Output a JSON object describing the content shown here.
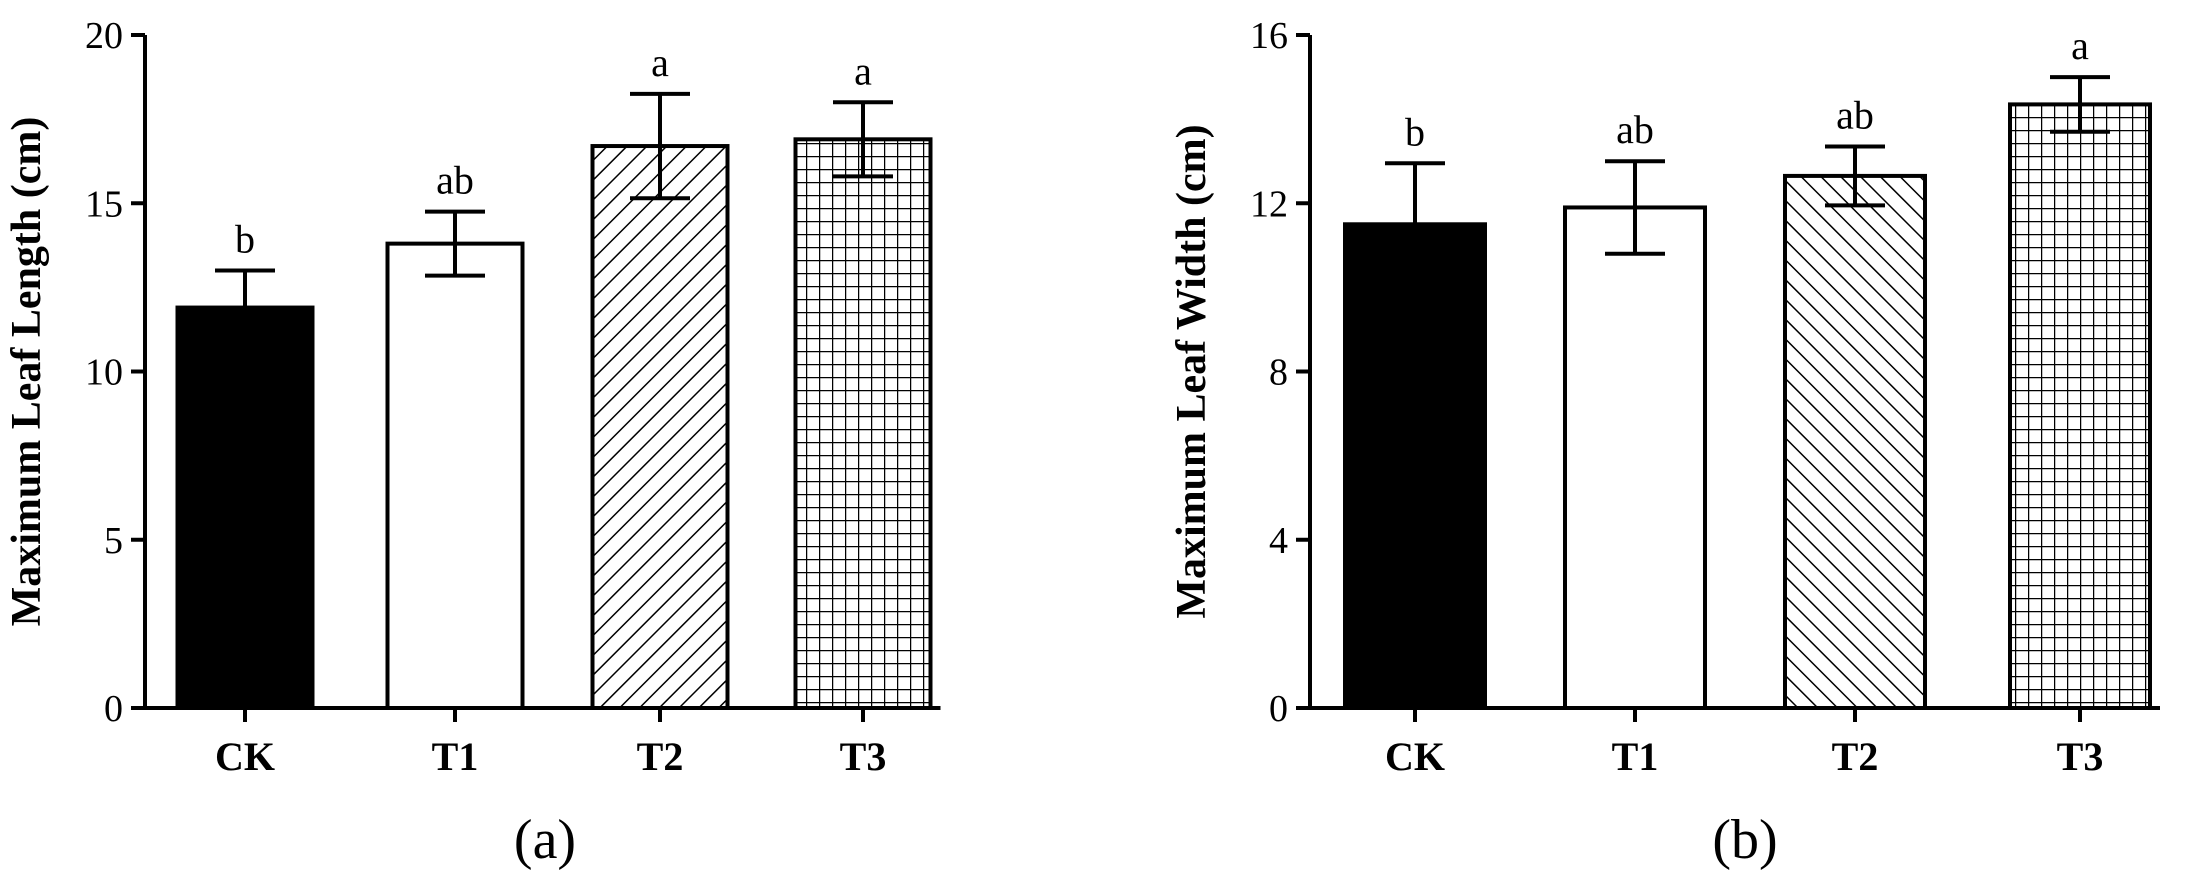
{
  "chart_data": [
    {
      "type": "bar",
      "panel_label": "(a)",
      "ylabel": "Maximum Leaf Length (cm)",
      "xlabel": "",
      "categories": [
        "CK",
        "T1",
        "T2",
        "T3"
      ],
      "values": [
        11.9,
        13.8,
        16.7,
        16.9
      ],
      "errors": [
        1.1,
        0.95,
        1.55,
        1.1
      ],
      "significance": [
        "b",
        "ab",
        "a",
        "a"
      ],
      "fills": [
        "solid-black",
        "white",
        "diagonal-hatch",
        "grid-hatch"
      ],
      "ylim": [
        0,
        20
      ],
      "yticks": [
        0,
        5,
        10,
        15,
        20
      ],
      "grid": false
    },
    {
      "type": "bar",
      "panel_label": "(b)",
      "ylabel": "Maximum Leaf Width (cm)",
      "xlabel": "",
      "categories": [
        "CK",
        "T1",
        "T2",
        "T3"
      ],
      "values": [
        11.5,
        11.9,
        12.65,
        14.35
      ],
      "errors": [
        1.45,
        1.1,
        0.7,
        0.65
      ],
      "significance": [
        "b",
        "ab",
        "ab",
        "a"
      ],
      "fills": [
        "solid-black",
        "white",
        "diagonal-hatch",
        "grid-hatch"
      ],
      "ylim": [
        0,
        16
      ],
      "yticks": [
        0,
        4,
        8,
        12,
        16
      ],
      "grid": false
    }
  ]
}
